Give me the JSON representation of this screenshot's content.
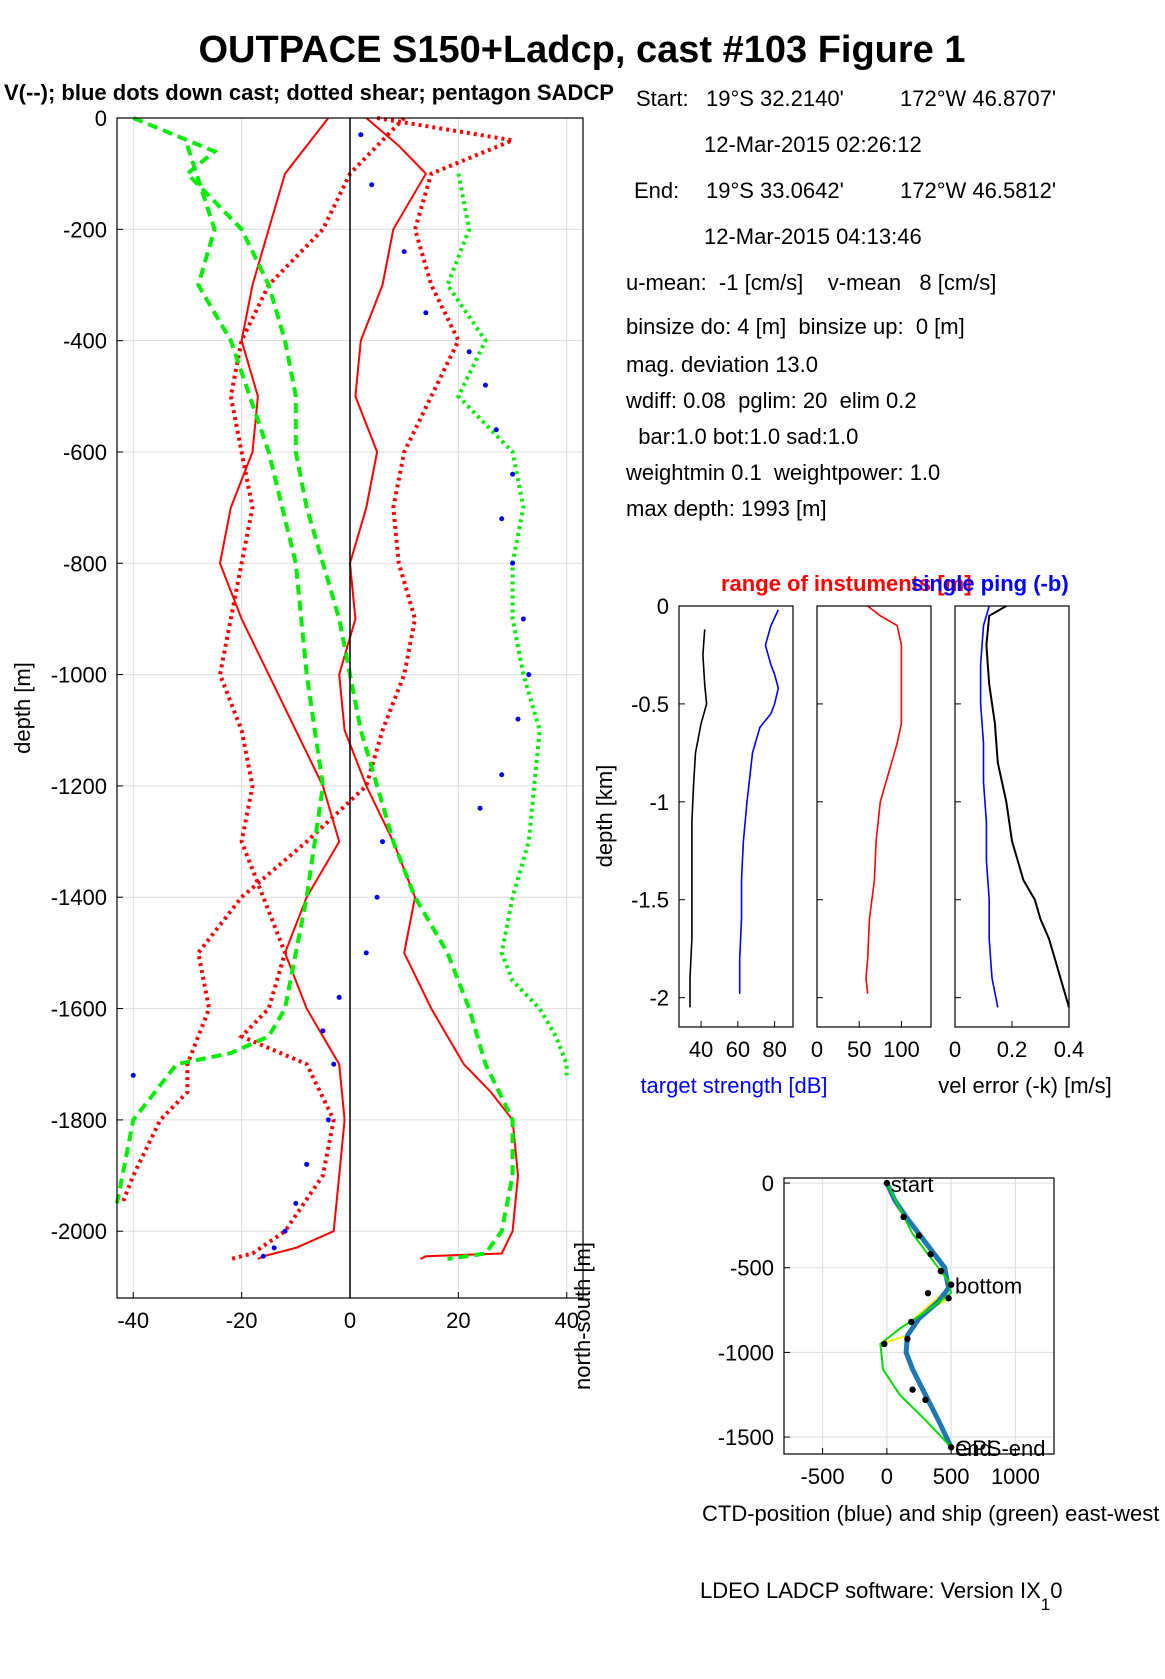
{
  "figure": {
    "title": "OUTPACE S150+Ladcp, cast #103  Figure 1",
    "subtitle": "V(--); blue dots down cast; dotted shear; pentagon SADCP",
    "footer": "LDEO LADCP software: Version IX",
    "footer_sub": "1",
    "footer_tail": "0"
  },
  "info": {
    "start_label": "Start:",
    "start_lat": "19°S 32.2140'",
    "start_lon": "172°W 46.8707'",
    "start_time": "12-Mar-2015 02:26:12",
    "end_label": "End:",
    "end_lat": "19°S 33.0642'",
    "end_lon": "172°W 46.5812'",
    "end_time": "12-Mar-2015 04:13:46",
    "means": "u-mean:  -1 [cm/s]    v-mean   8 [cm/s]",
    "binsize": "binsize do: 4 [m]  binsize up:  0 [m]",
    "magdev": "mag. deviation 13.0",
    "wdiff": "wdiff: 0.08  pglim: 20  elim 0.2",
    "weights": "  bar:1.0 bot:1.0 sad:1.0",
    "weightmin": "weightmin 0.1  weightpower: 1.0",
    "maxdepth": "max depth: 1993 [m]"
  },
  "colors": {
    "u": "#ff0000",
    "v": "#00ee00",
    "downcast": "#0000ff",
    "ship": "#00dd00",
    "ctd": "#1f77b4",
    "link": "#ffee00"
  },
  "chart_data": [
    {
      "id": "velocity-profile",
      "type": "line",
      "xlabel": "",
      "ylabel": "depth [m]",
      "xlim": [
        -43,
        43
      ],
      "ylim": [
        -2120,
        0
      ],
      "xticks": [
        -40,
        -20,
        0,
        20,
        40
      ],
      "yticks": [
        0,
        -200,
        -400,
        -600,
        -800,
        -1000,
        -1200,
        -1400,
        -1600,
        -1800,
        -2000
      ],
      "grid": true,
      "series": [
        {
          "name": "",
          "color": "#ff0000",
          "style": "solid",
          "x": [
            3,
            9,
            14,
            8,
            6,
            2,
            1,
            5,
            3,
            0,
            1,
            -2,
            -1,
            3,
            8,
            12,
            10,
            15,
            18,
            21,
            26,
            30,
            31,
            30,
            28,
            14,
            13
          ],
          "y": [
            0,
            -50,
            -100,
            -200,
            -300,
            -400,
            -500,
            -600,
            -700,
            -800,
            -900,
            -1000,
            -1100,
            -1200,
            -1300,
            -1400,
            -1500,
            -1600,
            -1650,
            -1700,
            -1750,
            -1800,
            -1900,
            -2000,
            -2040,
            -2045,
            -2050
          ]
        },
        {
          "name": "",
          "color": "#ff0000",
          "style": "solid",
          "x": [
            -4,
            -8,
            -12,
            -15,
            -18,
            -20,
            -17,
            -18,
            -22,
            -24,
            -20,
            -15,
            -10,
            -5,
            -2,
            -8,
            -12,
            -8,
            -2,
            -1,
            -2,
            -3,
            -10,
            -16,
            -17
          ],
          "y": [
            0,
            -50,
            -100,
            -200,
            -300,
            -400,
            -500,
            -600,
            -700,
            -800,
            -900,
            -1000,
            -1100,
            -1200,
            -1300,
            -1400,
            -1500,
            -1600,
            -1700,
            -1800,
            -1900,
            -2000,
            -2030,
            -2045,
            -2050
          ]
        },
        {
          "name": "",
          "color": "#ff0000",
          "style": "dotted",
          "x": [
            5,
            30,
            15,
            12,
            15,
            20,
            15,
            10,
            8,
            9,
            12,
            10,
            6,
            3,
            -8,
            -20,
            -28,
            -26,
            -30,
            -30,
            -35,
            -40,
            -42
          ],
          "y": [
            0,
            -40,
            -100,
            -200,
            -300,
            -400,
            -500,
            -600,
            -700,
            -800,
            -900,
            -1000,
            -1100,
            -1200,
            -1300,
            -1400,
            -1500,
            -1600,
            -1700,
            -1750,
            -1800,
            -1900,
            -1950
          ]
        },
        {
          "name": "",
          "color": "#ff0000",
          "style": "dotted",
          "x": [
            10,
            0,
            -5,
            -15,
            -20,
            -22,
            -20,
            -18,
            -20,
            -22,
            -24,
            -20,
            -18,
            -20,
            -16,
            -12,
            -15,
            -20,
            -8,
            -3,
            -5,
            -12,
            -18,
            -22
          ],
          "y": [
            0,
            -100,
            -200,
            -300,
            -400,
            -500,
            -600,
            -700,
            -800,
            -900,
            -1000,
            -1100,
            -1200,
            -1300,
            -1400,
            -1500,
            -1600,
            -1650,
            -1700,
            -1800,
            -1900,
            -2000,
            -2040,
            -2050
          ]
        },
        {
          "name": "",
          "color": "#00ee00",
          "style": "dashed",
          "x": [
            -40,
            -25,
            -30,
            -20,
            -15,
            -12,
            -10,
            -10,
            -8,
            -5,
            -2,
            0,
            2,
            5,
            8,
            12,
            18,
            22,
            25,
            30,
            30,
            28,
            25,
            18
          ],
          "y": [
            0,
            -60,
            -100,
            -200,
            -300,
            -400,
            -500,
            -600,
            -700,
            -800,
            -900,
            -1000,
            -1100,
            -1200,
            -1300,
            -1400,
            -1500,
            -1600,
            -1700,
            -1800,
            -1900,
            -2000,
            -2040,
            -2050
          ]
        },
        {
          "name": "",
          "color": "#00ee00",
          "style": "dotted",
          "x": [
            20,
            22,
            18,
            25,
            20,
            30,
            32,
            30,
            30,
            32,
            35,
            34,
            33,
            30,
            28,
            30,
            35,
            38,
            40,
            40
          ],
          "y": [
            -100,
            -200,
            -300,
            -400,
            -500,
            -600,
            -700,
            -800,
            -900,
            -1000,
            -1100,
            -1200,
            -1300,
            -1400,
            -1500,
            -1550,
            -1600,
            -1650,
            -1700,
            -1720
          ]
        },
        {
          "name": "",
          "color": "#00ee00",
          "style": "dashed",
          "x": [
            -30,
            -25,
            -28,
            -22,
            -15,
            -10,
            -8,
            -5,
            -8,
            -10,
            -12,
            -15,
            -22,
            -32,
            -40,
            -43
          ],
          "y": [
            -50,
            -200,
            -300,
            -400,
            -600,
            -800,
            -1000,
            -1200,
            -1400,
            -1500,
            -1600,
            -1650,
            -1680,
            -1700,
            -1800,
            -1950
          ]
        }
      ],
      "downcast_points": {
        "x": [
          2,
          4,
          10,
          14,
          22,
          25,
          27,
          30,
          28,
          30,
          32,
          33,
          31,
          28,
          24,
          6,
          5,
          3,
          -2,
          -5,
          -3,
          -4,
          -8,
          -10,
          -12,
          -14,
          -16,
          -40
        ],
        "y": [
          -30,
          -120,
          -240,
          -350,
          -420,
          -480,
          -560,
          -640,
          -720,
          -800,
          -900,
          -1000,
          -1080,
          -1180,
          -1240,
          -1300,
          -1400,
          -1500,
          -1580,
          -1640,
          -1700,
          -1800,
          -1880,
          -1950,
          -2000,
          -2030,
          -2045,
          -1720
        ]
      }
    },
    {
      "id": "target-strength",
      "type": "line",
      "title": "",
      "xlabel": "target strength [dB]",
      "ylabel": "depth [km]",
      "xlim": [
        28,
        90
      ],
      "ylim": [
        -2.15,
        0
      ],
      "xticks": [
        40,
        60,
        80
      ],
      "yticks": [
        0,
        -0.5,
        -1,
        -1.5,
        -2
      ],
      "series": [
        {
          "name": "",
          "color": "#0000ff",
          "x": [
            82,
            78,
            75,
            78,
            80,
            82,
            80,
            78,
            72,
            68,
            65,
            63,
            62,
            62,
            61,
            61
          ],
          "y": [
            -0.02,
            -0.1,
            -0.2,
            -0.3,
            -0.35,
            -0.42,
            -0.5,
            -0.55,
            -0.62,
            -0.75,
            -1.0,
            -1.2,
            -1.4,
            -1.6,
            -1.8,
            -1.98
          ]
        },
        {
          "name": "",
          "color": "#000000",
          "x": [
            42,
            41,
            42,
            43,
            40,
            37,
            36,
            35,
            35,
            35,
            34,
            34
          ],
          "y": [
            -0.12,
            -0.25,
            -0.4,
            -0.5,
            -0.6,
            -0.75,
            -0.9,
            -1.1,
            -1.4,
            -1.7,
            -1.9,
            -2.05
          ]
        }
      ]
    },
    {
      "id": "range",
      "type": "line",
      "title": "range of instuments [m]",
      "xlabel": "",
      "ylabel": "",
      "xlim": [
        0,
        135
      ],
      "ylim": [
        -2.15,
        0
      ],
      "xticks": [
        0,
        50,
        100
      ],
      "yticks": [
        0,
        -0.5,
        -1,
        -1.5,
        -2
      ],
      "series": [
        {
          "name": "",
          "color": "#ff0000",
          "x": [
            60,
            75,
            95,
            100,
            100,
            100,
            95,
            85,
            75,
            70,
            68,
            62,
            60,
            58,
            60
          ],
          "y": [
            0,
            -0.05,
            -0.1,
            -0.2,
            -0.4,
            -0.6,
            -0.7,
            -0.85,
            -1.0,
            -1.2,
            -1.4,
            -1.6,
            -1.8,
            -1.9,
            -1.98
          ]
        }
      ]
    },
    {
      "id": "vel-error",
      "type": "line",
      "title": "single ping (-b)",
      "xlabel": "vel error (-k) [m/s]",
      "ylabel": "",
      "xlim": [
        0,
        0.4
      ],
      "ylim": [
        -2.15,
        0
      ],
      "xticks": [
        0,
        0.2,
        0.4
      ],
      "yticks": [
        0,
        -0.5,
        -1,
        -1.5,
        -2
      ],
      "series": [
        {
          "name": "",
          "color": "#000000",
          "x": [
            0.18,
            0.12,
            0.11,
            0.12,
            0.14,
            0.15,
            0.18,
            0.2,
            0.24,
            0.28,
            0.3,
            0.33,
            0.35,
            0.38,
            0.4
          ],
          "y": [
            0,
            -0.05,
            -0.2,
            -0.4,
            -0.6,
            -0.8,
            -1.0,
            -1.2,
            -1.4,
            -1.5,
            -1.6,
            -1.7,
            -1.8,
            -1.95,
            -2.05
          ]
        },
        {
          "name": "",
          "color": "#0000ff",
          "x": [
            0.12,
            0.1,
            0.09,
            0.09,
            0.1,
            0.1,
            0.11,
            0.11,
            0.12,
            0.12,
            0.13,
            0.15
          ],
          "y": [
            0,
            -0.1,
            -0.3,
            -0.5,
            -0.7,
            -0.9,
            -1.1,
            -1.3,
            -1.5,
            -1.7,
            -1.9,
            -2.05
          ]
        }
      ]
    },
    {
      "id": "positions",
      "type": "line",
      "xlabel": "CTD-position (blue) and ship (green) east-west [m]",
      "ylabel": "north-south [m]",
      "xlim": [
        -800,
        1300
      ],
      "ylim": [
        -1600,
        30
      ],
      "xticks": [
        -500,
        0,
        500,
        1000
      ],
      "yticks": [
        0,
        -500,
        -1000,
        -1500
      ],
      "grid": true,
      "labels": {
        "start": "start",
        "bottom": "bottom",
        "end": "end",
        "gps_end": "GPS-end"
      },
      "series": [
        {
          "name": "",
          "color": "#1f77b4",
          "x": [
            0,
            60,
            150,
            300,
            450,
            480,
            400,
            250,
            160,
            150,
            200,
            300,
            400,
            500
          ],
          "y": [
            0,
            -100,
            -200,
            -350,
            -500,
            -620,
            -700,
            -800,
            -900,
            -1000,
            -1100,
            -1250,
            -1400,
            -1560
          ]
        },
        {
          "name": "",
          "color": "#00dd00",
          "x": [
            0,
            100,
            200,
            350,
            480,
            500,
            300,
            100,
            -50,
            -30,
            100,
            300,
            500
          ],
          "y": [
            0,
            -150,
            -300,
            -450,
            -580,
            -650,
            -760,
            -860,
            -950,
            -1100,
            -1250,
            -1400,
            -1560
          ]
        }
      ],
      "links": {
        "x": [
          -50,
          160,
          200,
          480,
          300,
          480,
          160
        ],
        "y": [
          -950,
          -900,
          -810,
          -620,
          -760,
          -680,
          -900
        ]
      },
      "markers": {
        "x": [
          0,
          130,
          250,
          340,
          420,
          500,
          480,
          320,
          190,
          -20,
          160,
          200,
          300,
          500
        ],
        "y": [
          0,
          -200,
          -310,
          -420,
          -520,
          -600,
          -680,
          -650,
          -820,
          -950,
          -920,
          -1220,
          -1280,
          -1560
        ]
      }
    }
  ]
}
